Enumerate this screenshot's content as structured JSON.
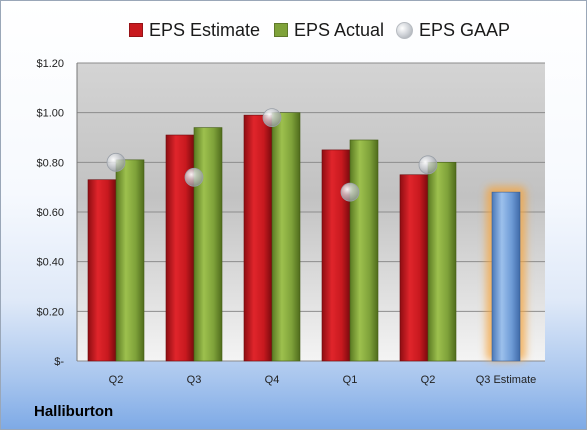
{
  "legend": {
    "estimate": "EPS Estimate",
    "actual": "EPS Actual",
    "gaap": "EPS GAAP"
  },
  "company": "Halliburton",
  "colors": {
    "estimate": "#c8191f",
    "actual": "#7fa23a",
    "gaap": "#b9bdc3",
    "forecast": "#6e9bd6",
    "forecast_glow": "#f5a540"
  },
  "chart_data": {
    "type": "bar",
    "categories": [
      "Q2",
      "Q3",
      "Q4",
      "Q1",
      "Q2",
      "Q3 Estimate"
    ],
    "series": [
      {
        "name": "EPS Estimate",
        "values": [
          0.73,
          0.91,
          0.99,
          0.85,
          0.75,
          0.68
        ]
      },
      {
        "name": "EPS Actual",
        "values": [
          0.81,
          0.94,
          1.0,
          0.89,
          0.8,
          null
        ]
      },
      {
        "name": "EPS GAAP",
        "values": [
          0.8,
          0.74,
          0.98,
          0.68,
          0.79,
          null
        ]
      }
    ],
    "ylim": [
      0,
      1.2
    ],
    "yticks": [
      0,
      0.2,
      0.4,
      0.6,
      0.8,
      1.0,
      1.2
    ],
    "ytick_labels": [
      "$-",
      "$0.20",
      "$0.40",
      "$0.60",
      "$0.80",
      "$1.00",
      "$1.20"
    ],
    "grid": true,
    "legend_position": "top"
  }
}
